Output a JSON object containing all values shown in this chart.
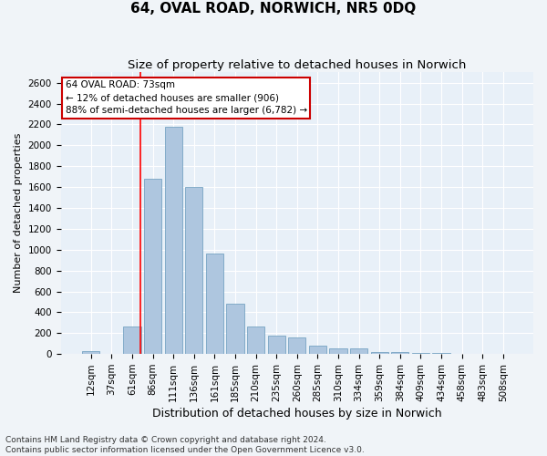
{
  "title": "64, OVAL ROAD, NORWICH, NR5 0DQ",
  "subtitle": "Size of property relative to detached houses in Norwich",
  "xlabel": "Distribution of detached houses by size in Norwich",
  "ylabel": "Number of detached properties",
  "categories": [
    "12sqm",
    "37sqm",
    "61sqm",
    "86sqm",
    "111sqm",
    "136sqm",
    "161sqm",
    "185sqm",
    "210sqm",
    "235sqm",
    "260sqm",
    "285sqm",
    "310sqm",
    "334sqm",
    "359sqm",
    "384sqm",
    "409sqm",
    "434sqm",
    "458sqm",
    "483sqm",
    "508sqm"
  ],
  "values": [
    30,
    5,
    260,
    1680,
    2180,
    1600,
    960,
    480,
    260,
    175,
    155,
    80,
    55,
    50,
    15,
    15,
    10,
    8,
    5,
    1,
    5
  ],
  "bar_color": "#aec6df",
  "bar_edgecolor": "#6699bb",
  "background_color": "#e8f0f8",
  "grid_color": "#ffffff",
  "fig_background": "#f0f4f8",
  "red_line_x": 2.42,
  "annotation_text": "64 OVAL ROAD: 73sqm\n← 12% of detached houses are smaller (906)\n88% of semi-detached houses are larger (6,782) →",
  "annotation_box_color": "#ffffff",
  "annotation_box_edgecolor": "#cc0000",
  "footer_line1": "Contains HM Land Registry data © Crown copyright and database right 2024.",
  "footer_line2": "Contains public sector information licensed under the Open Government Licence v3.0.",
  "ylim": [
    0,
    2700
  ],
  "yticks": [
    0,
    200,
    400,
    600,
    800,
    1000,
    1200,
    1400,
    1600,
    1800,
    2000,
    2200,
    2400,
    2600
  ],
  "title_fontsize": 11,
  "subtitle_fontsize": 9.5,
  "xlabel_fontsize": 9,
  "ylabel_fontsize": 8,
  "tick_fontsize": 7.5,
  "annotation_fontsize": 7.5,
  "footer_fontsize": 6.5
}
